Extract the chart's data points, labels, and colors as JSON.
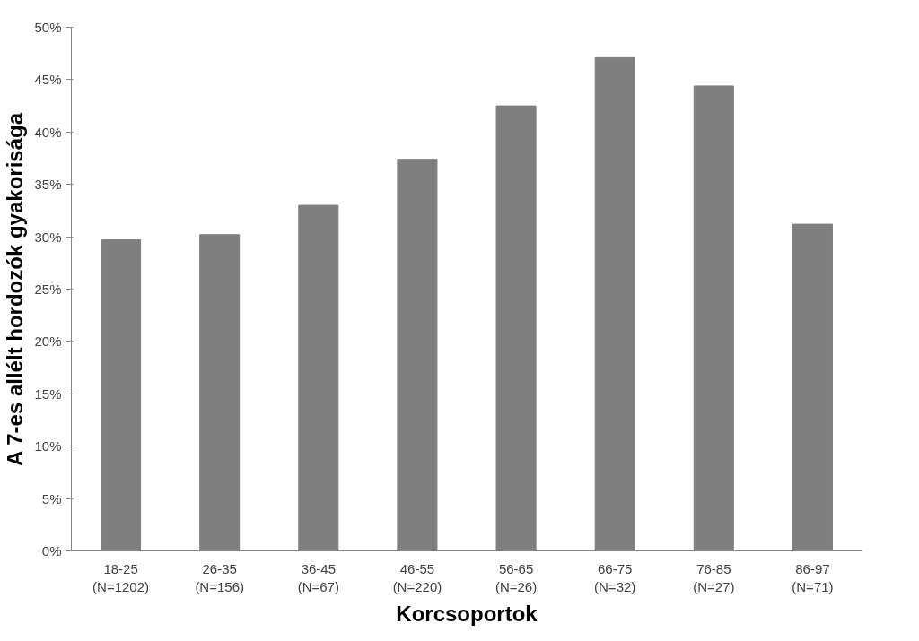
{
  "chart_data": {
    "type": "bar",
    "xlabel": "Korcsoportok",
    "ylabel": "A 7-es allélt hordozók gyakorisága",
    "categories": [
      "18-25\n(N=1202)",
      "26-35\n(N=156)",
      "36-45\n(N=67)",
      "46-55\n(N=220)",
      "56-65\n(N=26)",
      "66-75\n(N=32)",
      "76-85\n(N=27)",
      "86-97\n(N=71)"
    ],
    "values": [
      29.7,
      30.2,
      33.0,
      37.4,
      42.5,
      47.1,
      44.4,
      31.2
    ],
    "color": "#7f7f7f",
    "ylim": [
      0,
      50
    ],
    "yticks": [
      {
        "value": 0,
        "label": "0%"
      },
      {
        "value": 5,
        "label": "5%"
      },
      {
        "value": 10,
        "label": "10%"
      },
      {
        "value": 15,
        "label": "15%"
      },
      {
        "value": 20,
        "label": "20%"
      },
      {
        "value": 25,
        "label": "25%"
      },
      {
        "value": 30,
        "label": "30%"
      },
      {
        "value": 35,
        "label": "35%"
      },
      {
        "value": 40,
        "label": "40%"
      },
      {
        "value": 45,
        "label": "45%"
      },
      {
        "value": 50,
        "label": "50%"
      }
    ],
    "grid": false
  }
}
